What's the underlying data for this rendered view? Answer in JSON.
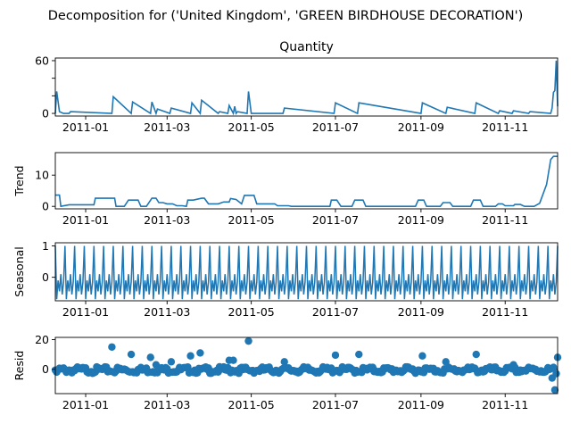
{
  "figure": {
    "suptitle": "Decomposition for ('United Kingdom', 'GREEN BIRDHOUSE DECORATION')",
    "line_color": "#1f77b4",
    "zero_line_color": "#000000"
  },
  "chart_data": [
    {
      "type": "line",
      "title": "Quantity",
      "ylabel": "",
      "x_range": [
        "2011-12-10",
        "2011-12-09"
      ],
      "x_ticks": [
        "2011-01",
        "2011-03",
        "2011-05",
        "2011-07",
        "2011-09",
        "2011-11"
      ],
      "ylim": [
        -3,
        63
      ],
      "y_ticks": [
        0,
        20,
        40,
        60
      ],
      "y_tick_labels": [
        "0",
        "",
        "",
        "60"
      ],
      "series": [
        {
          "x": [
            "2010-12-10",
            "2010-12-11",
            "2010-12-13",
            "2010-12-16",
            "2010-12-20",
            "2010-12-21",
            "2011-01-20",
            "2011-01-21",
            "2011-02-03",
            "2011-02-04",
            "2011-02-17",
            "2011-02-18",
            "2011-02-21",
            "2011-02-22",
            "2011-03-03",
            "2011-03-04",
            "2011-03-18",
            "2011-03-19",
            "2011-03-25",
            "2011-03-26",
            "2011-04-07",
            "2011-04-08",
            "2011-04-14",
            "2011-04-15",
            "2011-04-18",
            "2011-04-19",
            "2011-04-20",
            "2011-04-21",
            "2011-04-28",
            "2011-04-29",
            "2011-05-01",
            "2011-05-24",
            "2011-05-25",
            "2011-06-30",
            "2011-07-01",
            "2011-07-17",
            "2011-07-18",
            "2011-09-01",
            "2011-09-02",
            "2011-09-19",
            "2011-09-20",
            "2011-10-10",
            "2011-10-11",
            "2011-10-27",
            "2011-10-28",
            "2011-11-06",
            "2011-11-07",
            "2011-11-18",
            "2011-11-19",
            "2011-12-04",
            "2011-12-05",
            "2011-12-06",
            "2011-12-07",
            "2011-12-08",
            "2011-12-09"
          ],
          "y": [
            0,
            25,
            2,
            0,
            0,
            2,
            0,
            19,
            0,
            13,
            0,
            13,
            0,
            5,
            0,
            6,
            0,
            12,
            0,
            15,
            0,
            2,
            0,
            9,
            0,
            8,
            0,
            2,
            0,
            25,
            0,
            0,
            6,
            0,
            12,
            0,
            12,
            0,
            12,
            0,
            7,
            0,
            12,
            0,
            3,
            0,
            3,
            0,
            2,
            0,
            6,
            24,
            26,
            60,
            8
          ]
        }
      ]
    },
    {
      "type": "line",
      "title": "",
      "ylabel": "Trend",
      "x_range": [
        "2010-12-10",
        "2011-12-09"
      ],
      "x_ticks": [
        "2011-01",
        "2011-03",
        "2011-05",
        "2011-07",
        "2011-09",
        "2011-11"
      ],
      "ylim": [
        -0.8,
        17.2
      ],
      "y_ticks": [
        0,
        10
      ],
      "y_tick_labels": [
        "0",
        "10"
      ],
      "series": [
        {
          "x": [
            "2010-12-10",
            "2010-12-13",
            "2010-12-14",
            "2010-12-20",
            "2011-01-07",
            "2011-01-08",
            "2011-01-12",
            "2011-01-22",
            "2011-01-23",
            "2011-01-29",
            "2011-02-01",
            "2011-02-08",
            "2011-02-10",
            "2011-02-14",
            "2011-02-18",
            "2011-02-21",
            "2011-02-23",
            "2011-02-26",
            "2011-03-01",
            "2011-03-05",
            "2011-03-08",
            "2011-03-12",
            "2011-03-15",
            "2011-03-16",
            "2011-03-20",
            "2011-03-26",
            "2011-03-28",
            "2011-03-31",
            "2011-04-07",
            "2011-04-11",
            "2011-04-15",
            "2011-04-16",
            "2011-04-20",
            "2011-04-24",
            "2011-04-26",
            "2011-05-03",
            "2011-05-05",
            "2011-05-18",
            "2011-05-20",
            "2011-05-28",
            "2011-05-30",
            "2011-06-27",
            "2011-06-28",
            "2011-07-02",
            "2011-07-05",
            "2011-07-13",
            "2011-07-15",
            "2011-07-21",
            "2011-07-23",
            "2011-08-28",
            "2011-08-30",
            "2011-09-03",
            "2011-09-05",
            "2011-09-15",
            "2011-09-17",
            "2011-09-22",
            "2011-09-24",
            "2011-10-07",
            "2011-10-09",
            "2011-10-14",
            "2011-10-16",
            "2011-10-25",
            "2011-10-27",
            "2011-10-30",
            "2011-11-01",
            "2011-11-07",
            "2011-11-08",
            "2011-11-12",
            "2011-11-15",
            "2011-11-22",
            "2011-11-26",
            "2011-12-01",
            "2011-12-04",
            "2011-12-06",
            "2011-12-07",
            "2011-12-09"
          ],
          "y": [
            3.6,
            3.6,
            0,
            0.5,
            0.5,
            2.6,
            2.6,
            2.6,
            0,
            0,
            2,
            2,
            0,
            0,
            2.6,
            2.6,
            1.2,
            1.2,
            0.8,
            0.8,
            0.2,
            0.2,
            0,
            2,
            2,
            2.6,
            2.6,
            0.8,
            0.8,
            1.4,
            1.4,
            2.5,
            2.2,
            0.8,
            3.5,
            3.5,
            0.8,
            0.8,
            0.2,
            0.2,
            0,
            0,
            2,
            2,
            0,
            0,
            2,
            2,
            0,
            0,
            2,
            2,
            0,
            0,
            1.2,
            1.2,
            0,
            0,
            2,
            2,
            0,
            0,
            0.8,
            0.8,
            0.2,
            0.2,
            0.6,
            0.6,
            0,
            0,
            1,
            7,
            15,
            16,
            16,
            16
          ]
        }
      ]
    },
    {
      "type": "line",
      "title": "",
      "ylabel": "Seasonal",
      "x_range": [
        "2010-12-10",
        "2011-12-09"
      ],
      "x_ticks": [
        "2011-01",
        "2011-03",
        "2011-05",
        "2011-07",
        "2011-09",
        "2011-11"
      ],
      "ylim": [
        -0.75,
        1.1
      ],
      "y_ticks": [
        0,
        1
      ],
      "y_tick_labels": [
        "0",
        "1"
      ],
      "period_days": 7,
      "series": [
        {
          "weekly_pattern_from": "2010-12-10",
          "values": [
            1.0,
            -0.7,
            -0.1,
            -0.45,
            0.1,
            -0.55,
            -0.15
          ]
        }
      ]
    },
    {
      "type": "scatter",
      "title": "",
      "ylabel": "Resid",
      "x_range": [
        "2010-12-10",
        "2011-12-09"
      ],
      "x_ticks": [
        "2011-01",
        "2011-03",
        "2011-05",
        "2011-07",
        "2011-09",
        "2011-11"
      ],
      "ylim": [
        -16.5,
        21.5
      ],
      "y_ticks": [
        0,
        20
      ],
      "y_tick_labels": [
        "0",
        "20"
      ],
      "outliers": {
        "x": [
          "2010-12-11",
          "2011-01-20",
          "2011-02-03",
          "2011-02-17",
          "2011-02-21",
          "2011-03-04",
          "2011-03-18",
          "2011-03-25",
          "2011-04-15",
          "2011-04-18",
          "2011-04-29",
          "2011-05-25",
          "2011-07-01",
          "2011-07-18",
          "2011-09-02",
          "2011-09-19",
          "2011-10-11",
          "2011-11-07",
          "2011-12-05",
          "2011-12-07",
          "2011-12-08",
          "2011-12-09"
        ],
        "y": [
          -2,
          15,
          10,
          8,
          3,
          5,
          9,
          11,
          6,
          6,
          19,
          5,
          9.5,
          10,
          9,
          5,
          10,
          3,
          -6,
          -14,
          -3,
          8
        ]
      }
    }
  ]
}
